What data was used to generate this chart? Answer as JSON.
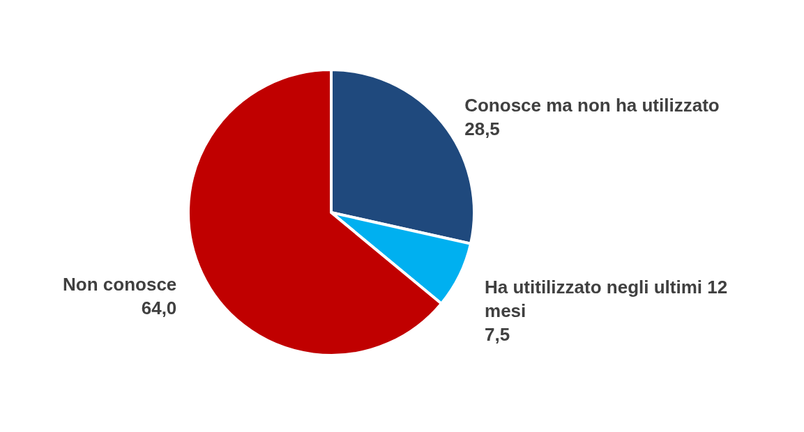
{
  "chart_data": {
    "type": "pie",
    "categories": [
      "Conosce ma non ha utilizzato",
      "Ha utitilizzato negli ultimi 12 mesi",
      "Non conosce"
    ],
    "values": [
      28.5,
      7.5,
      64.0
    ],
    "value_labels": [
      "28,5",
      "7,5",
      "64,0"
    ],
    "colors": [
      "#1f497d",
      "#00b0f0",
      "#c00000"
    ],
    "legend": false
  }
}
